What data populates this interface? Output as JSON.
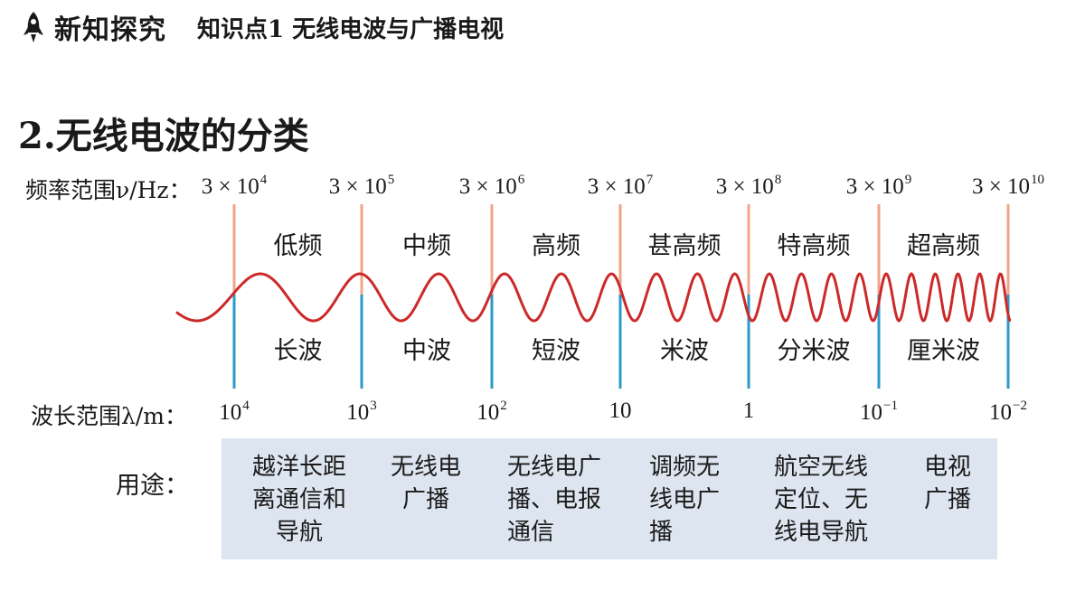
{
  "header": {
    "section": "新知探究",
    "topic": "知识点1  无线电波与广播电视",
    "icon": "rocket-icon"
  },
  "title": "2.无线电波的分类",
  "frequency": {
    "label": "频率范围ν/Hz：",
    "ticks": [
      {
        "base": "3 × 10",
        "exp": "4"
      },
      {
        "base": "3 × 10",
        "exp": "5"
      },
      {
        "base": "3 × 10",
        "exp": "6"
      },
      {
        "base": "3 × 10",
        "exp": "7"
      },
      {
        "base": "3 × 10",
        "exp": "8"
      },
      {
        "base": "3 × 10",
        "exp": "9"
      },
      {
        "base": "3 × 10",
        "exp": "10"
      }
    ],
    "bands": [
      "低频",
      "中频",
      "高频",
      "甚高频",
      "特高频",
      "超高频"
    ]
  },
  "wavelength": {
    "label": "波长范围λ/m：",
    "ticks": [
      {
        "base": "10",
        "exp": "4"
      },
      {
        "base": "10",
        "exp": "3"
      },
      {
        "base": "10",
        "exp": "2"
      },
      {
        "base": "10",
        "exp": ""
      },
      {
        "base": "1",
        "exp": ""
      },
      {
        "base": "10",
        "exp": "−1"
      },
      {
        "base": "10",
        "exp": "−2"
      }
    ],
    "bands": [
      "长波",
      "中波",
      "短波",
      "米波",
      "分米波",
      "厘米波"
    ]
  },
  "uses": {
    "label": "用途：",
    "items": [
      [
        "越洋长距",
        "离通信和",
        "导航"
      ],
      [
        "无线电",
        "广播"
      ],
      [
        "无线电广",
        "播、电报",
        "通信"
      ],
      [
        "调频无",
        "线电广",
        "播"
      ],
      [
        "航空无线",
        "定位、无",
        "线电导航"
      ],
      [
        "电视",
        "广播"
      ]
    ]
  },
  "colors": {
    "wave": "#cc2a2a",
    "freq_line": "#f0a48a",
    "wave_line": "#2a9ac8",
    "panel": "#dde6f0"
  }
}
